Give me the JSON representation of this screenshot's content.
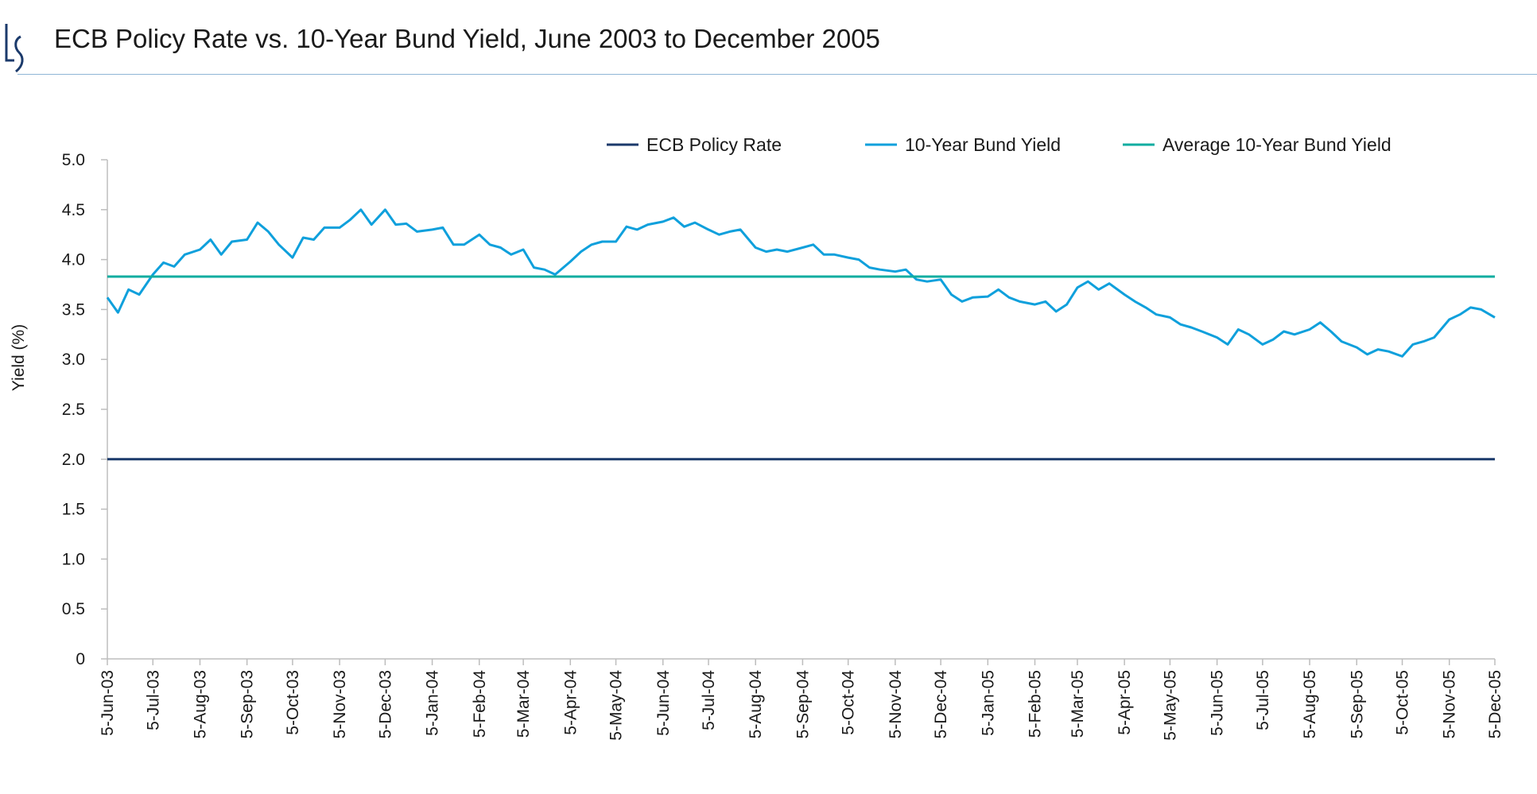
{
  "header": {
    "title": "ECB Policy Rate vs. 10-Year Bund Yield, June 2003 to December 2005",
    "logo_text": "LS"
  },
  "colors": {
    "policy": "#1b3a6b",
    "bund": "#0fa0dc",
    "average": "#11ada0",
    "axis": "#bdbdbd",
    "rule": "#8fb6d6"
  },
  "chart_data": {
    "type": "line",
    "title": "ECB Policy Rate vs. 10-Year Bund Yield, June 2003 to December 2005",
    "ylabel": "Yield (%)",
    "xlabel": "",
    "ylim": [
      0,
      5.0
    ],
    "xlim": [
      "2003-06-05",
      "2005-12-05"
    ],
    "grid": false,
    "legend_position": "top-right",
    "yticks": [
      "0",
      "0.5",
      "1.0",
      "1.5",
      "2.0",
      "2.5",
      "3.0",
      "3.5",
      "4.0",
      "4.5",
      "5.0"
    ],
    "xticks": [
      "5-Jun-03",
      "5-Jul-03",
      "5-Aug-03",
      "5-Sep-03",
      "5-Oct-03",
      "5-Nov-03",
      "5-Dec-03",
      "5-Jan-04",
      "5-Feb-04",
      "5-Mar-04",
      "5-Apr-04",
      "5-May-04",
      "5-Jun-04",
      "5-Jul-04",
      "5-Aug-04",
      "5-Sep-04",
      "5-Oct-04",
      "5-Nov-04",
      "5-Dec-04",
      "5-Jan-05",
      "5-Feb-05",
      "5-Mar-05",
      "5-Apr-05",
      "5-May-05",
      "5-Jun-05",
      "5-Jul-05",
      "5-Aug-05",
      "5-Sep-05",
      "5-Oct-05",
      "5-Nov-05",
      "5-Dec-05"
    ],
    "series": [
      {
        "name": "ECB Policy Rate",
        "color": "#1b3a6b",
        "constant": 2.0
      },
      {
        "name": "10-Year Bund Yield",
        "color": "#0fa0dc",
        "start": "2003-06-05",
        "days_of_month": [
          5,
          12,
          19,
          26
        ],
        "values": [
          3.62,
          3.47,
          3.7,
          3.65,
          3.85,
          3.97,
          3.93,
          4.05,
          4.1,
          4.2,
          4.05,
          4.18,
          4.2,
          4.37,
          4.28,
          4.15,
          4.02,
          4.22,
          4.2,
          4.32,
          4.32,
          4.4,
          4.5,
          4.35,
          4.5,
          4.35,
          4.36,
          4.28,
          4.3,
          4.32,
          4.15,
          4.15,
          4.25,
          4.15,
          4.12,
          4.05,
          4.1,
          3.92,
          3.9,
          3.85,
          3.98,
          4.08,
          4.15,
          4.18,
          4.18,
          4.33,
          4.3,
          4.35,
          4.38,
          4.42,
          4.33,
          4.37,
          4.3,
          4.25,
          4.28,
          4.3,
          4.12,
          4.08,
          4.1,
          4.08,
          4.12,
          4.15,
          4.05,
          4.05,
          4.02,
          4.0,
          3.92,
          3.9,
          3.88,
          3.9,
          3.8,
          3.78,
          3.8,
          3.65,
          3.58,
          3.62,
          3.63,
          3.7,
          3.62,
          3.58,
          3.55,
          3.58,
          3.48,
          3.55,
          3.72,
          3.78,
          3.7,
          3.76,
          3.65,
          3.58,
          3.52,
          3.45,
          3.42,
          3.35,
          3.32,
          3.28,
          3.22,
          3.15,
          3.3,
          3.25,
          3.15,
          3.2,
          3.28,
          3.25,
          3.3,
          3.37,
          3.28,
          3.18,
          3.12,
          3.05,
          3.1,
          3.08,
          3.03,
          3.15,
          3.18,
          3.22,
          3.4,
          3.45,
          3.52,
          3.5,
          3.42
        ]
      },
      {
        "name": "Average 10-Year Bund Yield",
        "color": "#11ada0",
        "constant": 3.83
      }
    ]
  }
}
